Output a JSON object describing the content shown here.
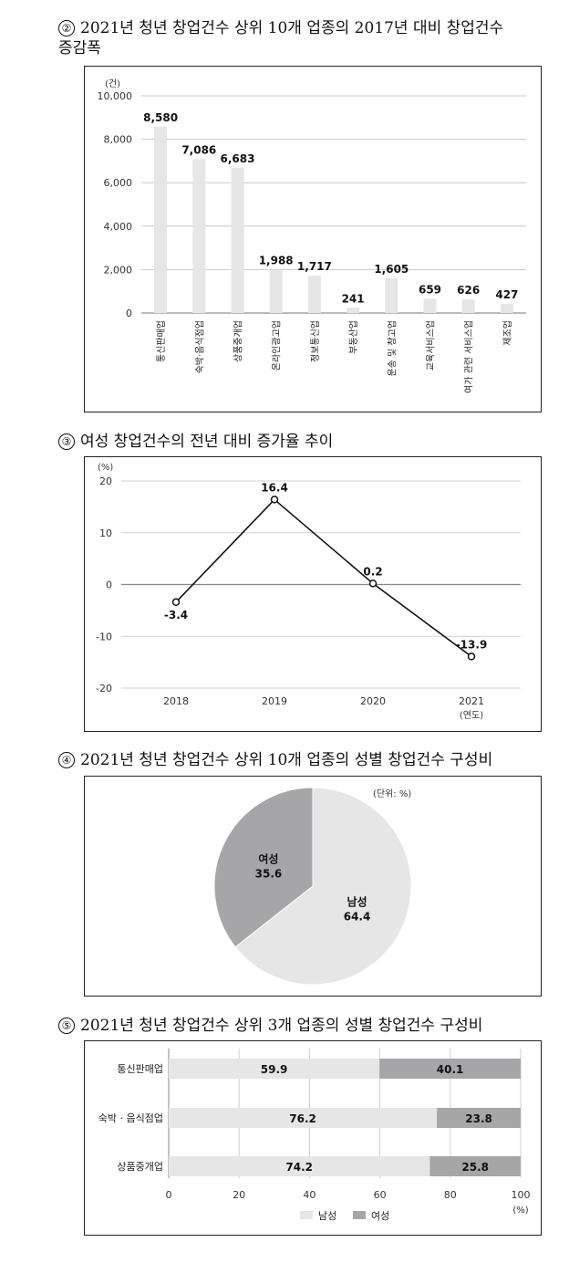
{
  "sections": [
    {
      "number": "②",
      "title_line1": "2021년 청년 창업건수 상위 10개 업종의 2017년 대비 창업건수",
      "title_line2": "증감폭"
    },
    {
      "number": "③",
      "title_line1": "여성 창업건수의 전년 대비 증가율 추이"
    },
    {
      "number": "④",
      "title_line1": "2021년 청년 창업건수 상위 10개 업종의 성별 창업건수 구성비"
    },
    {
      "number": "⑤",
      "title_line1": "2021년 청년 창업건수 상위 3개 업종의 성별 창업건수 구성비"
    }
  ],
  "chart_data": [
    {
      "type": "bar",
      "unit": "(건)",
      "categories": [
        "통신판매업",
        "숙박·음식점업",
        "상품중개업",
        "온라인광고업",
        "정보통신업",
        "부동산업",
        "운송 및 창고업",
        "교육서비스업",
        "여가 관련 서비스업",
        "제조업"
      ],
      "values": [
        8580,
        7086,
        6683,
        1988,
        1717,
        241,
        1605,
        659,
        626,
        427
      ],
      "value_labels": [
        "8,580",
        "7,086",
        "6,683",
        "1,988",
        "1,717",
        "241",
        "1,605",
        "659",
        "626",
        "427"
      ],
      "y_ticks": [
        0,
        2000,
        4000,
        6000,
        8000,
        10000
      ],
      "y_tick_labels": [
        "0",
        "2,000",
        "4,000",
        "6,000",
        "8,000",
        "10,000"
      ],
      "ylim": [
        0,
        10000
      ],
      "grid": true,
      "bar_color": "#e6e6e6"
    },
    {
      "type": "line",
      "unit": "(%)",
      "x": [
        "2018",
        "2019",
        "2020",
        "2021"
      ],
      "values": [
        -3.4,
        16.4,
        0.2,
        -13.9
      ],
      "value_labels": [
        "-3.4",
        "16.4",
        "0.2",
        "-13.9"
      ],
      "x_unit": "(연도)",
      "y_ticks": [
        -20,
        -10,
        0,
        10,
        20
      ],
      "ylim": [
        -20,
        20
      ],
      "grid": true
    },
    {
      "type": "pie",
      "unit": "(단위: %)",
      "slices": [
        {
          "label": "남성",
          "value": 64.4,
          "value_label": "64.4",
          "color": "#e6e6e6"
        },
        {
          "label": "여성",
          "value": 35.6,
          "value_label": "35.6",
          "color": "#a6a6a8"
        }
      ]
    },
    {
      "type": "bar",
      "orientation": "horizontal",
      "stacked": true,
      "categories": [
        "통신판매업",
        "숙박 · 음식점업",
        "상품중개업"
      ],
      "series": [
        {
          "name": "남성",
          "values": [
            59.9,
            76.2,
            74.2
          ],
          "value_labels": [
            "59.9",
            "76.2",
            "74.2"
          ],
          "color": "#e6e6e6"
        },
        {
          "name": "여성",
          "values": [
            40.1,
            23.8,
            25.8
          ],
          "value_labels": [
            "40.1",
            "23.8",
            "25.8"
          ],
          "color": "#a6a6a8"
        }
      ],
      "x_ticks": [
        0,
        20,
        40,
        60,
        80,
        100
      ],
      "x_unit": "(%)",
      "xlim": [
        0,
        100
      ],
      "legend_position": "bottom",
      "grid": true
    }
  ]
}
